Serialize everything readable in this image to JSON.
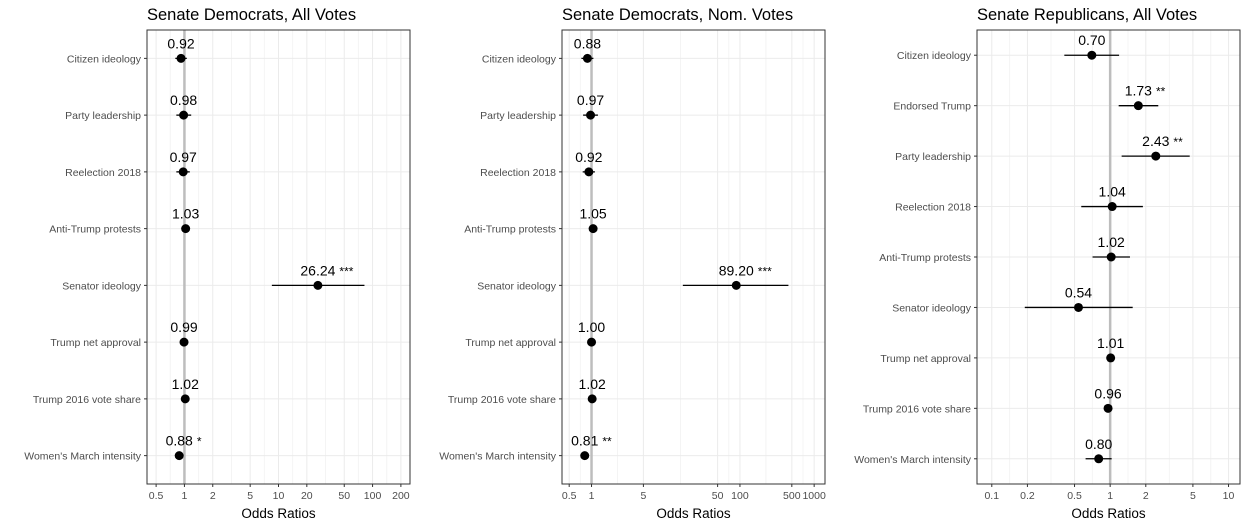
{
  "chart_data": [
    {
      "type": "scatter",
      "title": "Senate Democrats, All Votes",
      "xlabel": "Odds Ratios",
      "x_scale": "log",
      "xlim": [
        0.4,
        250
      ],
      "x_ticks": [
        0.5,
        1,
        2,
        5,
        10,
        20,
        50,
        100,
        200
      ],
      "x_tick_labels": [
        "0.5",
        "1",
        "2",
        "5",
        "10",
        "20",
        "50",
        "100",
        "200"
      ],
      "reference_line": 1,
      "grid": true,
      "categories": [
        "Citizen ideology",
        "Party leadership",
        "Reelection 2018",
        "Anti-Trump protests",
        "Senator ideology",
        "Trump net approval",
        "Trump 2016 vote share",
        "Women's March intensity"
      ],
      "points": [
        {
          "category": "Citizen ideology",
          "value": 0.92,
          "ci": [
            0.8,
            1.06
          ],
          "label": "0.92",
          "sig": ""
        },
        {
          "category": "Party leadership",
          "value": 0.98,
          "ci": [
            0.82,
            1.18
          ],
          "label": "0.98",
          "sig": ""
        },
        {
          "category": "Reelection 2018",
          "value": 0.97,
          "ci": [
            0.82,
            1.14
          ],
          "label": "0.97",
          "sig": ""
        },
        {
          "category": "Anti-Trump protests",
          "value": 1.03,
          "ci": [
            0.98,
            1.08
          ],
          "label": "1.03",
          "sig": ""
        },
        {
          "category": "Senator ideology",
          "value": 26.24,
          "ci": [
            8.5,
            82
          ],
          "label": "26.24",
          "sig": "***"
        },
        {
          "category": "Trump net approval",
          "value": 0.99,
          "ci": [
            0.97,
            1.01
          ],
          "label": "0.99",
          "sig": ""
        },
        {
          "category": "Trump 2016 vote share",
          "value": 1.02,
          "ci": [
            0.99,
            1.05
          ],
          "label": "1.02",
          "sig": ""
        },
        {
          "category": "Women's March intensity",
          "value": 0.88,
          "ci": [
            0.8,
            0.97
          ],
          "label": "0.88",
          "sig": "*"
        }
      ]
    },
    {
      "type": "scatter",
      "title": "Senate Democrats, Nom. Votes",
      "xlabel": "Odds Ratios",
      "x_scale": "log",
      "xlim": [
        0.4,
        1400
      ],
      "x_ticks": [
        0.5,
        1,
        5,
        50,
        100,
        500,
        1000
      ],
      "x_tick_labels": [
        "0.5",
        "1",
        "5",
        "50",
        "100",
        "500",
        "1000"
      ],
      "reference_line": 1,
      "grid": true,
      "categories": [
        "Citizen ideology",
        "Party leadership",
        "Reelection 2018",
        "Anti-Trump protests",
        "Senator ideology",
        "Trump net approval",
        "Trump 2016 vote share",
        "Women's March intensity"
      ],
      "points": [
        {
          "category": "Citizen ideology",
          "value": 0.88,
          "ci": [
            0.73,
            1.06
          ],
          "label": "0.88",
          "sig": ""
        },
        {
          "category": "Party leadership",
          "value": 0.97,
          "ci": [
            0.77,
            1.22
          ],
          "label": "0.97",
          "sig": ""
        },
        {
          "category": "Reelection 2018",
          "value": 0.92,
          "ci": [
            0.76,
            1.11
          ],
          "label": "0.92",
          "sig": ""
        },
        {
          "category": "Anti-Trump protests",
          "value": 1.05,
          "ci": [
            0.99,
            1.11
          ],
          "label": "1.05",
          "sig": ""
        },
        {
          "category": "Senator ideology",
          "value": 89.2,
          "ci": [
            17,
            450
          ],
          "label": "89.20",
          "sig": "***"
        },
        {
          "category": "Trump net approval",
          "value": 1.0,
          "ci": [
            0.98,
            1.02
          ],
          "label": "1.00",
          "sig": ""
        },
        {
          "category": "Trump 2016 vote share",
          "value": 1.02,
          "ci": [
            0.98,
            1.06
          ],
          "label": "1.02",
          "sig": ""
        },
        {
          "category": "Women's March intensity",
          "value": 0.81,
          "ci": [
            0.72,
            0.91
          ],
          "label": "0.81",
          "sig": "**"
        }
      ]
    },
    {
      "type": "scatter",
      "title": "Senate Republicans, All Votes",
      "xlabel": "Odds Ratios",
      "x_scale": "log",
      "xlim": [
        0.075,
        12.5
      ],
      "x_ticks": [
        0.1,
        0.2,
        0.5,
        1,
        2,
        5,
        10
      ],
      "x_tick_labels": [
        "0.1",
        "0.2",
        "0.5",
        "1",
        "2",
        "5",
        "10"
      ],
      "reference_line": 1,
      "grid": true,
      "categories": [
        "Citizen ideology",
        "Endorsed Trump",
        "Party leadership",
        "Reelection 2018",
        "Anti-Trump protests",
        "Senator ideology",
        "Trump net approval",
        "Trump 2016 vote share",
        "Women's March intensity"
      ],
      "points": [
        {
          "category": "Citizen ideology",
          "value": 0.7,
          "ci": [
            0.41,
            1.19
          ],
          "label": "0.70",
          "sig": ""
        },
        {
          "category": "Endorsed Trump",
          "value": 1.73,
          "ci": [
            1.18,
            2.55
          ],
          "label": "1.73",
          "sig": "**"
        },
        {
          "category": "Party leadership",
          "value": 2.43,
          "ci": [
            1.25,
            4.7
          ],
          "label": "2.43",
          "sig": "**"
        },
        {
          "category": "Reelection 2018",
          "value": 1.04,
          "ci": [
            0.57,
            1.89
          ],
          "label": "1.04",
          "sig": ""
        },
        {
          "category": "Anti-Trump protests",
          "value": 1.02,
          "ci": [
            0.71,
            1.47
          ],
          "label": "1.02",
          "sig": ""
        },
        {
          "category": "Senator ideology",
          "value": 0.54,
          "ci": [
            0.19,
            1.55
          ],
          "label": "0.54",
          "sig": ""
        },
        {
          "category": "Trump net approval",
          "value": 1.01,
          "ci": [
            0.98,
            1.04
          ],
          "label": "1.01",
          "sig": ""
        },
        {
          "category": "Trump 2016 vote share",
          "value": 0.96,
          "ci": [
            0.92,
            1.0
          ],
          "label": "0.96",
          "sig": ""
        },
        {
          "category": "Women's March intensity",
          "value": 0.8,
          "ci": [
            0.62,
            1.03
          ],
          "label": "0.80",
          "sig": ""
        }
      ]
    }
  ],
  "colors": {
    "panel_border": "#333333",
    "grid_major": "#ebebeb",
    "grid_minor": "#f4f4f4",
    "reference_line": "#bdbdbd",
    "point": "#000000",
    "text_axis": "#4d4d4d"
  }
}
